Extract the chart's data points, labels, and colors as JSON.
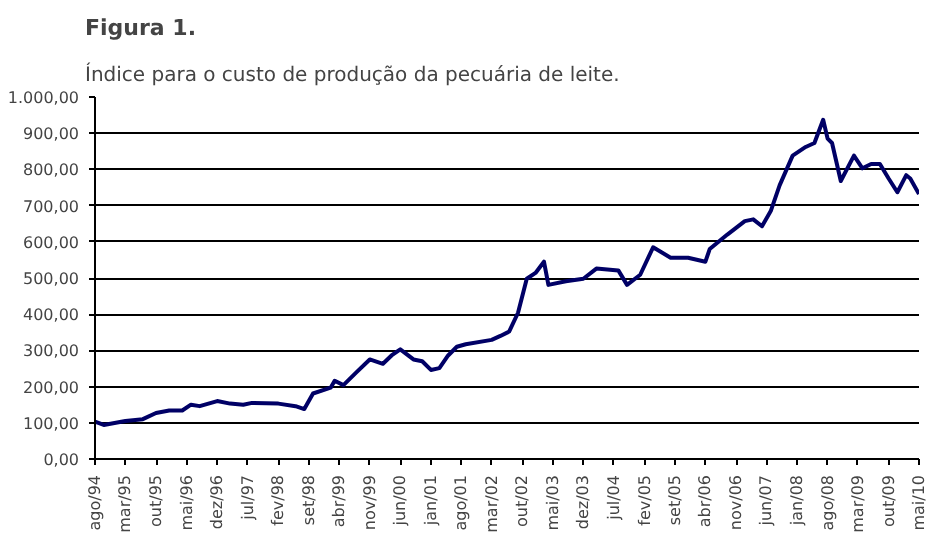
{
  "chart_data": {
    "type": "line",
    "title": "Figura 1.",
    "subtitle": "Índice para o custo de produção da pecuária de leite.",
    "x": [
      "1994-08",
      "1994-10",
      "1995-03",
      "1995-07",
      "1995-10",
      "1996-01",
      "1996-04",
      "1996-06",
      "1996-08",
      "1996-12",
      "1997-03",
      "1997-06",
      "1997-08",
      "1998-02",
      "1998-06",
      "1998-08",
      "1998-10",
      "1999-02",
      "1999-03",
      "1999-05",
      "1999-08",
      "1999-11",
      "2000-02",
      "2000-04",
      "2000-06",
      "2000-09",
      "2000-11",
      "2001-01",
      "2001-03",
      "2001-05",
      "2001-07",
      "2001-09",
      "2002-03",
      "2002-05",
      "2002-07",
      "2002-09",
      "2002-11",
      "2003-01",
      "2003-03",
      "2003-04",
      "2003-08",
      "2003-12",
      "2004-03",
      "2004-08",
      "2004-10",
      "2005-01",
      "2005-04",
      "2005-08",
      "2005-12",
      "2006-04",
      "2006-05",
      "2006-09",
      "2007-01",
      "2007-03",
      "2007-05",
      "2007-07",
      "2007-09",
      "2007-12",
      "2008-03",
      "2008-05",
      "2008-07",
      "2008-08",
      "2008-09",
      "2008-11",
      "2009-02",
      "2009-04",
      "2009-06",
      "2009-08",
      "2009-10",
      "2009-12",
      "2010-02",
      "2010-03",
      "2010-05"
    ],
    "series": [
      {
        "color": "#000066",
        "values": [
          103,
          94,
          105,
          110,
          127,
          134,
          134,
          150,
          146,
          160,
          153,
          150,
          155,
          153,
          146,
          138,
          181,
          197,
          216,
          204,
          240,
          275,
          263,
          286,
          303,
          275,
          270,
          246,
          251,
          286,
          310,
          317,
          329,
          340,
          352,
          404,
          498,
          514,
          545,
          481,
          491,
          498,
          526,
          521,
          481,
          509,
          585,
          556,
          556,
          545,
          580,
          620,
          657,
          662,
          643,
          685,
          756,
          838,
          862,
          873,
          937,
          885,
          873,
          768,
          838,
          803,
          815,
          815,
          775,
          737,
          784,
          775,
          732
        ]
      }
    ],
    "xlim": [
      "1994-08",
      "2010-05"
    ],
    "xticks": [
      {
        "value": "1994-08",
        "label": "ago/94"
      },
      {
        "value": "1995-03",
        "label": "mar/95"
      },
      {
        "value": "1995-10",
        "label": "out/95"
      },
      {
        "value": "1996-05",
        "label": "mai/96"
      },
      {
        "value": "1996-12",
        "label": "dez/96"
      },
      {
        "value": "1997-07",
        "label": "jul/97"
      },
      {
        "value": "1998-02",
        "label": "fev/98"
      },
      {
        "value": "1998-09",
        "label": "set/98"
      },
      {
        "value": "1999-04",
        "label": "abr/99"
      },
      {
        "value": "1999-11",
        "label": "nov/99"
      },
      {
        "value": "2000-06",
        "label": "jun/00"
      },
      {
        "value": "2001-01",
        "label": "jan/01"
      },
      {
        "value": "2001-08",
        "label": "ago/01"
      },
      {
        "value": "2002-03",
        "label": "mar/02"
      },
      {
        "value": "2002-10",
        "label": "out/02"
      },
      {
        "value": "2003-05",
        "label": "mai/03"
      },
      {
        "value": "2003-12",
        "label": "dez/03"
      },
      {
        "value": "2004-07",
        "label": "jul/04"
      },
      {
        "value": "2005-02",
        "label": "fev/05"
      },
      {
        "value": "2005-09",
        "label": "set/05"
      },
      {
        "value": "2006-04",
        "label": "abr/06"
      },
      {
        "value": "2006-11",
        "label": "nov/06"
      },
      {
        "value": "2007-06",
        "label": "jun/07"
      },
      {
        "value": "2008-01",
        "label": "jan/08"
      },
      {
        "value": "2008-08",
        "label": "ago/08"
      },
      {
        "value": "2009-03",
        "label": "mar/09"
      },
      {
        "value": "2009-10",
        "label": "out/09"
      },
      {
        "value": "2010-05",
        "label": "mai/10"
      }
    ],
    "ylim": [
      0,
      1000
    ],
    "yticks": [
      {
        "value": 0,
        "label": "0,00"
      },
      {
        "value": 100,
        "label": "100,00"
      },
      {
        "value": 200,
        "label": "200,00"
      },
      {
        "value": 300,
        "label": "300,00"
      },
      {
        "value": 400,
        "label": "400,00"
      },
      {
        "value": 500,
        "label": "500,00"
      },
      {
        "value": 600,
        "label": "600,00"
      },
      {
        "value": 700,
        "label": "700,00"
      },
      {
        "value": 800,
        "label": "800,00"
      },
      {
        "value": 900,
        "label": "900,00"
      },
      {
        "value": 1000,
        "label": "1.000,00"
      }
    ],
    "grid": "y",
    "line_style": "solid"
  }
}
